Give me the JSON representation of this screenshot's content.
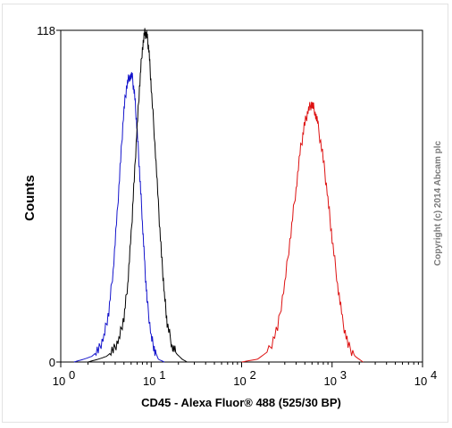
{
  "chart_data": {
    "type": "line",
    "xscale": "log",
    "xlim": [
      1,
      10000
    ],
    "ylim": [
      0,
      118
    ],
    "xlabel": "CD45 - Alexa Fluor® 488 (525/30 BP)",
    "ylabel": "Counts",
    "x_ticks": [
      {
        "value": 1,
        "label": "10",
        "exp": "0"
      },
      {
        "value": 10,
        "label": "10",
        "exp": "1"
      },
      {
        "value": 100,
        "label": "10",
        "exp": "2"
      },
      {
        "value": 1000,
        "label": "10",
        "exp": "3"
      },
      {
        "value": 10000,
        "label": "10",
        "exp": "4"
      }
    ],
    "y_ticks": [
      {
        "value": 0,
        "label": "0"
      },
      {
        "value": 118,
        "label": "118"
      }
    ],
    "grid": false,
    "legend": "none",
    "series": [
      {
        "color": "#1515cc",
        "x": [
          1.4,
          1.8,
          2.2,
          2.6,
          3.0,
          3.4,
          3.8,
          4.2,
          4.6,
          5.0,
          5.4,
          5.8,
          6.2,
          6.6,
          7.0,
          7.5,
          8.0,
          8.5,
          9.0,
          10,
          11,
          12,
          14
        ],
        "y": [
          0,
          1,
          2,
          4,
          9,
          18,
          33,
          52,
          72,
          90,
          99,
          102,
          101,
          94,
          82,
          66,
          50,
          34,
          22,
          9,
          4,
          1,
          0
        ]
      },
      {
        "color": "#000000",
        "x": [
          2.0,
          2.6,
          3.2,
          3.8,
          4.4,
          5.0,
          5.5,
          6.0,
          6.5,
          7.0,
          7.5,
          8.0,
          8.5,
          9.0,
          9.5,
          10,
          11,
          12,
          13,
          14,
          15,
          17,
          19,
          22,
          25
        ],
        "y": [
          0,
          1,
          2,
          4,
          8,
          16,
          28,
          45,
          65,
          84,
          100,
          112,
          117,
          116,
          110,
          98,
          78,
          56,
          38,
          24,
          14,
          6,
          3,
          1,
          0
        ]
      },
      {
        "color": "#dd1111",
        "x": [
          100,
          150,
          200,
          250,
          300,
          350,
          400,
          450,
          500,
          550,
          600,
          650,
          700,
          800,
          900,
          1000,
          1150,
          1300,
          1500,
          1800,
          2200
        ],
        "y": [
          0,
          1,
          4,
          12,
          28,
          46,
          62,
          76,
          85,
          90,
          92,
          89,
          84,
          72,
          58,
          44,
          28,
          15,
          6,
          2,
          0
        ]
      }
    ]
  },
  "copyright": "Copyright (c) 2014 Abcam plc"
}
